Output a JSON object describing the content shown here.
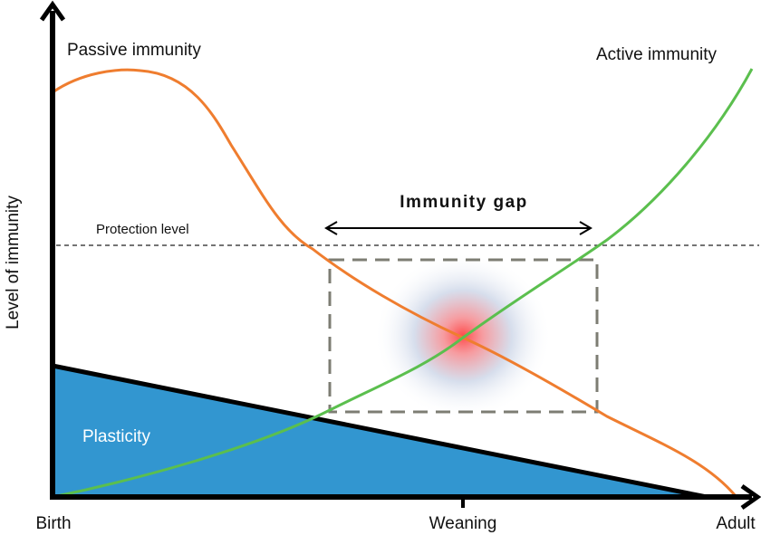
{
  "labels": {
    "y_axis": "Level of immunity",
    "x_birth": "Birth",
    "x_weaning": "Weaning",
    "x_adult": "Adult",
    "passive": "Passive immunity",
    "active": "Active immunity",
    "protection": "Protection level",
    "gap": "Immunity gap",
    "plasticity": "Plasticity"
  },
  "colors": {
    "passive_curve": "#ef7d2f",
    "active_curve": "#5bbf4e",
    "plasticity_fill": "#3296d0",
    "axis": "#000000",
    "gap_box": "#7d7d73",
    "glow_center": "#ff4a4a",
    "glow_outer": "#c9d3e6"
  }
}
